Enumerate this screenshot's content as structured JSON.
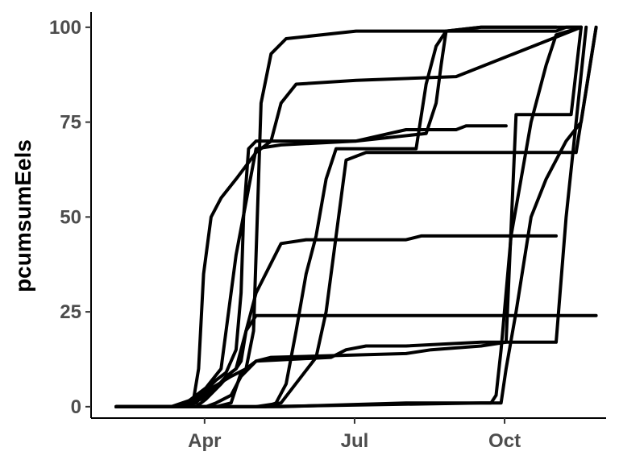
{
  "chart_data": {
    "type": "line",
    "title": "",
    "xlabel": "",
    "ylabel": "pcumsumEels",
    "x_unit": "month",
    "xlim": [
      1.7,
      12.0
    ],
    "ylim": [
      -3,
      104
    ],
    "x_ticks": [
      {
        "value": 3.97,
        "label": "Apr"
      },
      {
        "value": 6.97,
        "label": "Jul"
      },
      {
        "value": 9.97,
        "label": "Oct"
      }
    ],
    "y_ticks": [
      {
        "value": 0,
        "label": "0"
      },
      {
        "value": 25,
        "label": "25"
      },
      {
        "value": 50,
        "label": "50"
      },
      {
        "value": 75,
        "label": "75"
      },
      {
        "value": 100,
        "label": "100"
      }
    ],
    "grid": false,
    "legend": "none",
    "line_color": "#000000",
    "series": [
      {
        "x": [
          2.2,
          3.3,
          3.75,
          3.85,
          3.95,
          4.1,
          4.3,
          4.6,
          5.0,
          5.3,
          5.5,
          5.8,
          7.0,
          9.0,
          11.5
        ],
        "y": [
          0,
          0,
          2,
          10,
          35,
          50,
          55,
          60,
          67,
          70,
          80,
          85,
          86,
          87,
          100
        ]
      },
      {
        "x": [
          2.2,
          3.5,
          3.8,
          4.0,
          4.5,
          4.8,
          4.95,
          5.0,
          5.1,
          5.3,
          5.6,
          7.0,
          10.0,
          11.0,
          11.2,
          11.5
        ],
        "y": [
          0,
          0,
          1,
          4,
          8,
          10,
          20,
          40,
          80,
          93,
          97,
          99,
          99,
          99,
          100,
          100
        ]
      },
      {
        "x": [
          2.2,
          4.2,
          4.5,
          4.6,
          4.7,
          5.0,
          6.5,
          6.8,
          7.2,
          8.0,
          9.5,
          11.0,
          11.2,
          11.6
        ],
        "y": [
          0,
          0,
          1,
          5,
          9,
          12,
          13,
          15,
          16,
          16,
          17,
          17,
          50,
          100
        ]
      },
      {
        "x": [
          2.2,
          4.0,
          4.2,
          4.5,
          4.7,
          5.0,
          5.3,
          8.0,
          8.5,
          9.5,
          10.0,
          10.2,
          10.5,
          11.3,
          11.5
        ],
        "y": [
          0,
          0,
          1,
          3,
          8,
          12,
          13,
          14,
          15,
          16,
          17,
          77,
          77,
          77,
          100
        ]
      },
      {
        "x": [
          2.2,
          5.0,
          5.5,
          6.2,
          6.4,
          6.6,
          6.8,
          7.0,
          7.2,
          9.0,
          10.0,
          11.4,
          11.8
        ],
        "y": [
          0,
          0,
          1,
          13,
          25,
          45,
          65,
          66,
          67,
          67,
          67,
          67,
          100
        ]
      },
      {
        "x": [
          2.2,
          5.2,
          5.4,
          5.6,
          5.8,
          6.0,
          6.2,
          6.4,
          6.6,
          8.2,
          8.4,
          8.6,
          8.8,
          9.5,
          10.0,
          11.5
        ],
        "y": [
          0,
          0,
          1,
          6,
          20,
          35,
          45,
          60,
          68,
          68,
          85,
          95,
          99,
          100,
          100,
          100
        ]
      },
      {
        "x": [
          2.2,
          3.5,
          3.9,
          4.2,
          4.4,
          4.6,
          4.7,
          4.75,
          4.85,
          5.0,
          7.0,
          8.4,
          8.6,
          8.7,
          8.8,
          9.5,
          11.0
        ],
        "y": [
          0,
          0,
          3,
          7,
          9,
          15,
          30,
          50,
          68,
          70,
          70,
          72,
          80,
          90,
          99,
          100,
          100
        ]
      },
      {
        "x": [
          2.2,
          3.5,
          3.9,
          4.2,
          4.4,
          4.6,
          4.8,
          5.0,
          5.5,
          6.5,
          7.0,
          8.0,
          10.0,
          10.5,
          10.8,
          11.0,
          11.3,
          11.8
        ],
        "y": [
          0,
          0,
          2,
          5,
          8,
          10,
          20,
          24,
          24,
          24,
          24,
          24,
          24,
          24,
          24,
          24,
          24,
          24
        ]
      },
      {
        "x": [
          2.2,
          3.8,
          4.0,
          4.3,
          4.5,
          4.6,
          4.7,
          4.8,
          5.0,
          5.5,
          6.0,
          7.5,
          8.0,
          8.3,
          8.5,
          9.5,
          10.0,
          10.5,
          11.0
        ],
        "y": [
          0,
          0,
          2,
          6,
          9,
          10,
          12,
          20,
          30,
          43,
          44,
          44,
          44,
          45,
          45,
          45,
          45,
          45,
          45
        ]
      },
      {
        "x": [
          2.2,
          3.5,
          4.0,
          4.3,
          4.6,
          5.0,
          5.5,
          7.0,
          8.0,
          8.8,
          9.0,
          9.2,
          9.5,
          10.0
        ],
        "y": [
          0,
          0,
          5,
          10,
          40,
          68,
          69,
          70,
          73,
          73,
          73,
          74,
          74,
          74
        ]
      },
      {
        "x": [
          2.2,
          5.5,
          8.0,
          9.7,
          9.8,
          9.9,
          10.0,
          10.1,
          10.3,
          10.5,
          10.8,
          11.0,
          11.5
        ],
        "y": [
          0,
          0,
          1,
          1,
          3,
          15,
          30,
          45,
          60,
          75,
          90,
          98,
          100
        ]
      },
      {
        "x": [
          2.2,
          5.0,
          9.5,
          9.9,
          10.0,
          10.2,
          10.5,
          10.8,
          11.0,
          11.2,
          11.5,
          11.8
        ],
        "y": [
          0,
          0,
          1,
          1,
          10,
          25,
          50,
          60,
          65,
          70,
          75,
          100
        ]
      }
    ]
  }
}
